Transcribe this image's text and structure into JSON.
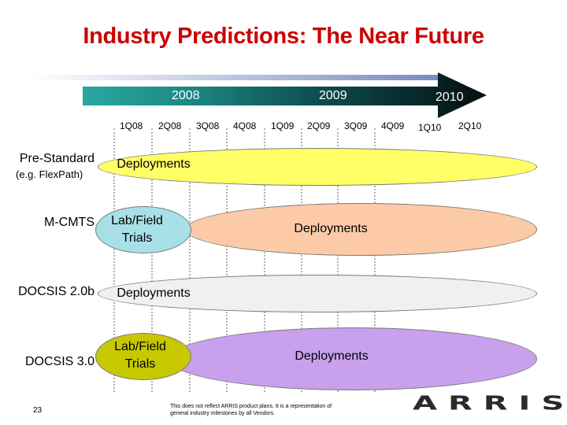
{
  "title": "Industry Predictions: The Near Future",
  "timeline": {
    "years": [
      "2008",
      "2009",
      "2010"
    ],
    "quarters": [
      "1Q08",
      "2Q08",
      "3Q08",
      "4Q08",
      "1Q09",
      "2Q09",
      "3Q09",
      "4Q09",
      "1Q10",
      "2Q10"
    ]
  },
  "rows": [
    {
      "label": "Pre-Standard",
      "sublabel": "(e.g. FlexPath)",
      "phases": [
        {
          "text": "Deployments",
          "color": "#ffff66"
        }
      ]
    },
    {
      "label": "M-CMTS",
      "phases": [
        {
          "text": "Lab/Field Trials",
          "color": "#a8e0e8"
        },
        {
          "text": "Deployments",
          "color": "#fccaa6"
        }
      ]
    },
    {
      "label": "DOCSIS 2.0b",
      "phases": [
        {
          "text": "Deployments",
          "color": "#f0f0f0"
        }
      ]
    },
    {
      "label": "DOCSIS 3.0",
      "phases": [
        {
          "text": "Lab/Field Trials",
          "color": "#c8c800"
        },
        {
          "text": "Deployments",
          "color": "#c8a0ec"
        }
      ]
    }
  ],
  "footnote": "This does not reflect ARRIS product plans. It is a representation of general industry milestones by all Vendors.",
  "page_number": "23",
  "logo_text": "ARRIS"
}
